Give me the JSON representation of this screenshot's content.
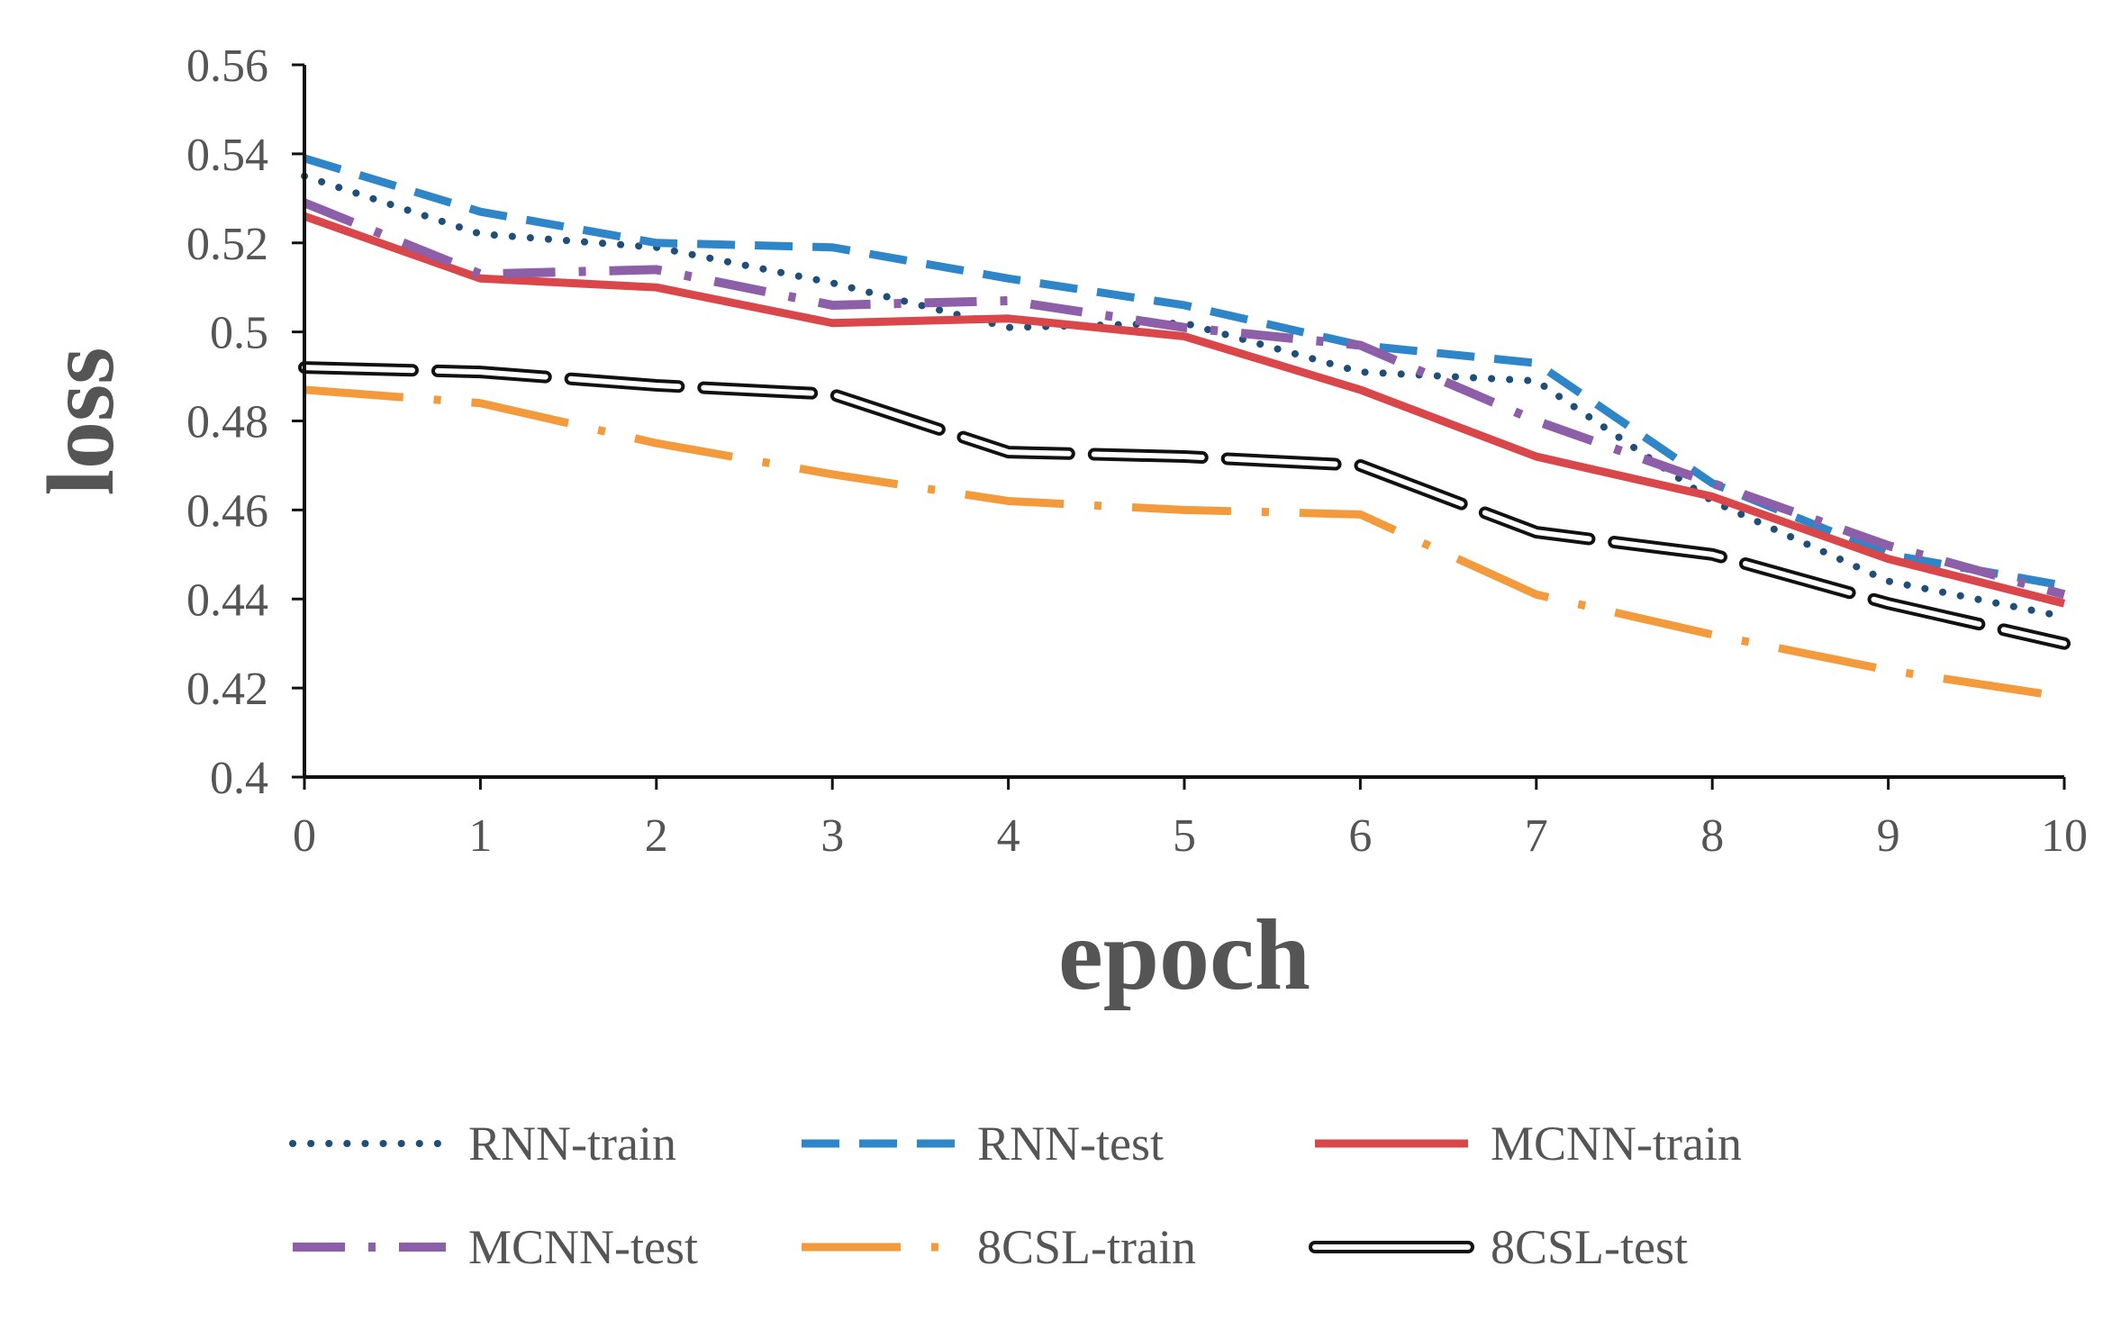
{
  "chart_data": {
    "type": "line",
    "title": "",
    "xlabel": "epoch",
    "ylabel": "loss",
    "x": [
      0,
      1,
      2,
      3,
      4,
      5,
      6,
      7,
      8,
      9,
      10
    ],
    "xlim": [
      0,
      10
    ],
    "ylim": [
      0.4,
      0.56
    ],
    "x_ticks": [
      "0",
      "1",
      "2",
      "3",
      "4",
      "5",
      "6",
      "7",
      "8",
      "9",
      "10"
    ],
    "y_ticks": [
      "0.4",
      "0.42",
      "0.44",
      "0.46",
      "0.48",
      "0.5",
      "0.52",
      "0.54",
      "0.56"
    ],
    "y_tick_values": [
      0.4,
      0.42,
      0.44,
      0.46,
      0.48,
      0.5,
      0.52,
      0.54,
      0.56
    ],
    "grid": false,
    "legend_position": "bottom",
    "series": [
      {
        "name": "RNN-train",
        "color": "#1f4e79",
        "style": "dotted",
        "values": [
          0.535,
          0.522,
          0.519,
          0.511,
          0.501,
          0.502,
          0.491,
          0.489,
          0.462,
          0.444,
          0.436
        ]
      },
      {
        "name": "RNN-test",
        "color": "#2e86c8",
        "style": "dashed",
        "values": [
          0.539,
          0.527,
          0.52,
          0.519,
          0.512,
          0.506,
          0.497,
          0.493,
          0.466,
          0.45,
          0.443
        ]
      },
      {
        "name": "MCNN-train",
        "color": "#d9474a",
        "style": "solid",
        "values": [
          0.526,
          0.512,
          0.51,
          0.502,
          0.503,
          0.499,
          0.487,
          0.472,
          0.463,
          0.449,
          0.439
        ]
      },
      {
        "name": "MCNN-test",
        "color": "#8c5fa8",
        "style": "dashdot",
        "values": [
          0.529,
          0.513,
          0.514,
          0.506,
          0.507,
          0.501,
          0.497,
          0.48,
          0.466,
          0.452,
          0.441
        ]
      },
      {
        "name": "8CSL-train",
        "color": "#f39a3c",
        "style": "longdashdot",
        "values": [
          0.487,
          0.484,
          0.475,
          0.468,
          0.462,
          0.46,
          0.459,
          0.441,
          0.432,
          0.424,
          0.418
        ]
      },
      {
        "name": "8CSL-test",
        "color": "#111111",
        "style": "double",
        "values": [
          0.492,
          0.491,
          0.488,
          0.486,
          0.473,
          0.472,
          0.47,
          0.455,
          0.45,
          0.439,
          0.43
        ]
      }
    ]
  }
}
